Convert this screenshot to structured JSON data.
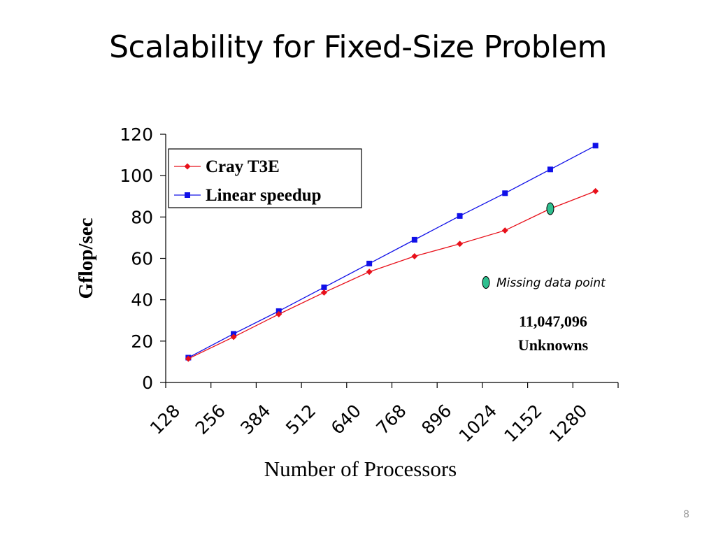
{
  "slide": {
    "title": "Scalability for Fixed-Size Problem",
    "page_number": "8"
  },
  "chart_data": {
    "type": "line",
    "title": "",
    "xlabel": "Number of Processors",
    "ylabel": "Gflop/sec",
    "x_tick_labels": [
      "128",
      "256",
      "384",
      "512",
      "640",
      "768",
      "896",
      "1024",
      "1152",
      "1280"
    ],
    "ylim": [
      0,
      120
    ],
    "y_ticks": [
      0,
      20,
      40,
      60,
      80,
      100,
      120
    ],
    "grid": false,
    "legend_position": "top-left",
    "x": [
      128,
      256,
      384,
      512,
      640,
      768,
      896,
      1024,
      1152,
      1280
    ],
    "series": [
      {
        "name": "Cray T3E",
        "color": "#e8101a",
        "marker": "diamond",
        "values": [
          11.5,
          22,
          33,
          43.5,
          53.5,
          61,
          67,
          73.5,
          84,
          92.5
        ]
      },
      {
        "name": "Linear speedup",
        "color": "#1010e8",
        "marker": "square",
        "values": [
          12,
          23.5,
          34.5,
          46,
          57.5,
          69,
          80.5,
          91.5,
          103,
          114.5
        ]
      }
    ],
    "missing_point": {
      "x": 1152,
      "y": 84,
      "color": "#2fbf8f"
    },
    "annotations": {
      "missing_label": "Missing data point",
      "unknowns_count": "11,047,096",
      "unknowns_label": "Unknowns"
    }
  }
}
